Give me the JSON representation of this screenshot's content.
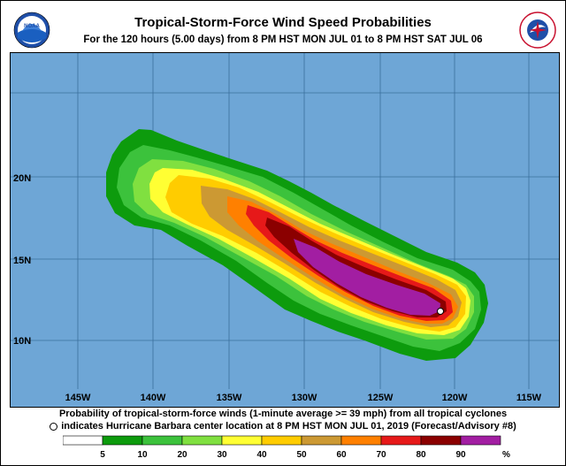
{
  "header": {
    "title": "Tropical-Storm-Force Wind Speed Probabilities",
    "subtitle": "For the 120 hours (5.00 days) from 8 PM HST MON JUL 01 to 8 PM HST SAT JUL 06",
    "left_logo_text": "NOAA",
    "right_logo_text": "NATIONAL WEATHER SERVICE"
  },
  "map": {
    "ocean_color": "#6ea6d6",
    "grid_color": "#3a6f9c",
    "lat_labels": [
      "20N",
      "15N",
      "10N"
    ],
    "lon_labels": [
      "145W",
      "140W",
      "135W",
      "130W",
      "125W",
      "120W",
      "115W"
    ],
    "storm_marker": "Hurricane Barbara center",
    "contour_colors": [
      "#0d9b0d",
      "#3cc23c",
      "#a5e84a",
      "#ffff33",
      "#ffcc00",
      "#cc9933",
      "#ff8000",
      "#e61919",
      "#8b0000",
      "#a21ea2"
    ]
  },
  "caption": {
    "line1": "Probability of tropical-storm-force winds (1-minute average >= 39 mph) from all tropical cyclones",
    "line2": "indicates Hurricane Barbara center location at 8 PM HST MON JUL 01, 2019 (Forecast/Advisory #8)"
  },
  "legend": {
    "labels": [
      "5",
      "10",
      "20",
      "30",
      "40",
      "50",
      "60",
      "70",
      "80",
      "90",
      "%"
    ],
    "colors": [
      "#ffffff",
      "#0d9b0d",
      "#3cc23c",
      "#80e040",
      "#ffff33",
      "#ffcc00",
      "#cc9933",
      "#ff8000",
      "#e61919",
      "#8b0000",
      "#a21ea2"
    ]
  }
}
